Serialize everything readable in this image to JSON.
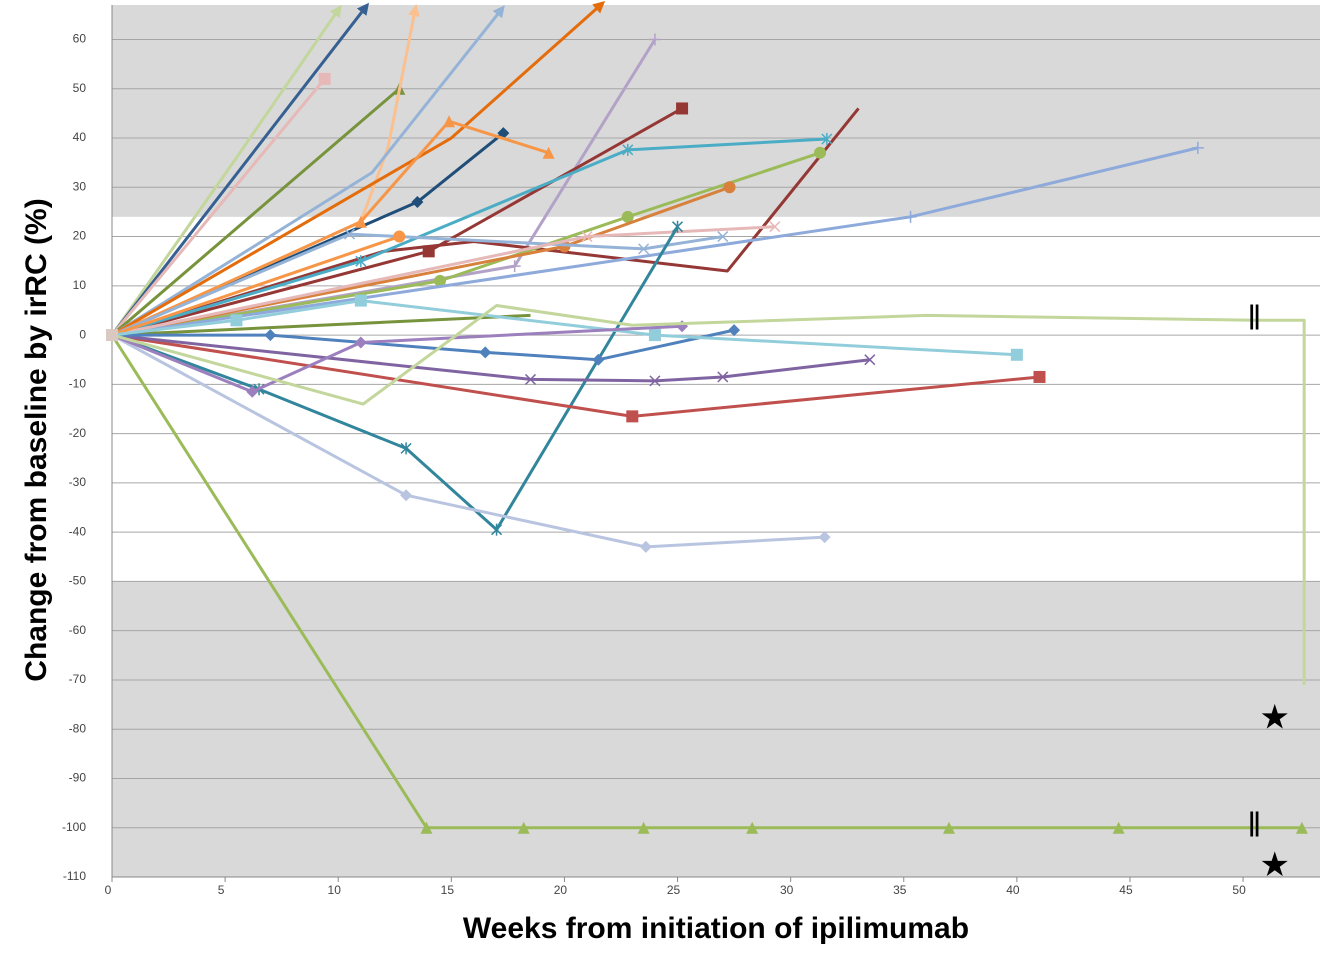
{
  "chart_data": {
    "type": "line",
    "x_label": "Weeks from initiation of ipilimumab",
    "y_label": "Change from baseline by irRC (%)",
    "xlim": [
      0,
      53.4
    ],
    "ylim": [
      -110,
      67
    ],
    "xticks": [
      0,
      5,
      10,
      15,
      20,
      25,
      30,
      35,
      40,
      45,
      50
    ],
    "yticks": [
      -110,
      -100,
      -90,
      -80,
      -70,
      -60,
      -50,
      -40,
      -30,
      -20,
      -10,
      0,
      10,
      20,
      30,
      40,
      50,
      60
    ],
    "grid": true,
    "shaded_regions": [
      {
        "from": 24,
        "to": 67,
        "color": "#d9d9d9"
      },
      {
        "from": -110,
        "to": -50,
        "color": "#d9d9d9"
      }
    ],
    "series": [
      {
        "color": "#c3d69b",
        "marker": "none",
        "arrow": true,
        "x": [
          0,
          5.5,
          10
        ],
        "values": [
          0,
          36,
          66
        ]
      },
      {
        "color": "#376092",
        "marker": "none",
        "arrow": true,
        "x": [
          0,
          11.2
        ],
        "values": [
          0,
          66.5
        ]
      },
      {
        "color": "#e6b9b8",
        "marker": "square",
        "x": [
          0,
          9.4
        ],
        "values": [
          0,
          52
        ]
      },
      {
        "color": "#77933c",
        "marker": "triangle",
        "x": [
          0,
          12.7
        ],
        "values": [
          0,
          50
        ]
      },
      {
        "color": "#fac090",
        "marker": "none",
        "arrow": true,
        "x": [
          0,
          11,
          12.2,
          13.4
        ],
        "values": [
          0,
          23,
          38,
          66
        ]
      },
      {
        "color": "#95b3d7",
        "marker": "none",
        "arrow": true,
        "x": [
          0,
          11.5,
          17.2
        ],
        "values": [
          0,
          33,
          66
        ]
      },
      {
        "color": "#e46c0a",
        "marker": "none",
        "arrow": true,
        "x": [
          0,
          15,
          21.6
        ],
        "values": [
          0,
          40,
          67
        ]
      },
      {
        "color": "#b3a2c7",
        "marker": "plus",
        "x": [
          0,
          17.8,
          24
        ],
        "values": [
          0,
          14,
          60
        ]
      },
      {
        "color": "#953735",
        "marker": "square",
        "x": [
          0,
          14,
          25.2
        ],
        "values": [
          0,
          17,
          46
        ]
      },
      {
        "color": "#953735",
        "marker": "none",
        "x": [
          0,
          12,
          16,
          27.2,
          33
        ],
        "values": [
          0,
          17,
          19,
          13,
          46
        ]
      },
      {
        "color": "#1f4e79",
        "marker": "diamond",
        "x": [
          0,
          13.5,
          17.3
        ],
        "values": [
          0,
          27,
          41
        ]
      },
      {
        "color": "#f79646",
        "marker": "triangle",
        "x": [
          0,
          11,
          14.9,
          19.3
        ],
        "values": [
          0,
          23,
          43.4,
          37
        ]
      },
      {
        "color": "#4bacc6",
        "marker": "star",
        "x": [
          0,
          11,
          22.8,
          31.6
        ],
        "values": [
          0,
          15,
          37.6,
          39.8
        ]
      },
      {
        "color": "#9bbb59",
        "marker": "circle",
        "x": [
          0,
          14.5,
          22.8,
          31.3
        ],
        "values": [
          0,
          11,
          24,
          37
        ]
      },
      {
        "color": "#d7813c",
        "marker": "circle",
        "x": [
          0,
          20,
          27.3
        ],
        "values": [
          0,
          18,
          30
        ]
      },
      {
        "color": "#8eaadb",
        "marker": "plus",
        "x": [
          0,
          35.3,
          48
        ],
        "values": [
          0,
          24,
          38
        ]
      },
      {
        "color": "#95b3d7",
        "marker": "x",
        "x": [
          0,
          10.5,
          23.5,
          27
        ],
        "values": [
          0,
          20.5,
          17.5,
          20
        ]
      },
      {
        "color": "#e6b9b8",
        "marker": "x",
        "x": [
          0,
          21,
          29.3
        ],
        "values": [
          0,
          20,
          22
        ]
      },
      {
        "color": "#f79646",
        "marker": "circle",
        "x": [
          0,
          12.7
        ],
        "values": [
          0,
          20
        ]
      },
      {
        "color": "#77933c",
        "marker": "none",
        "x": [
          0,
          18.5
        ],
        "values": [
          0,
          4
        ]
      },
      {
        "color": "#31859c",
        "marker": "star",
        "x": [
          0,
          6.5,
          13,
          17,
          25
        ],
        "values": [
          0,
          -11,
          -23,
          -39.5,
          22
        ]
      },
      {
        "color": "#b9c5e0",
        "marker": "diamond",
        "x": [
          0,
          13,
          23.6,
          31.5
        ],
        "values": [
          0,
          -32.5,
          -43,
          -41
        ]
      },
      {
        "color": "#c0504d",
        "marker": "square",
        "x": [
          0,
          23,
          41
        ],
        "values": [
          0,
          -16.5,
          -8.5
        ]
      },
      {
        "color": "#8064a2",
        "marker": "x",
        "x": [
          0,
          18.5,
          24,
          27,
          33.5
        ],
        "values": [
          0,
          -9,
          -9.3,
          -8.5,
          -5
        ]
      },
      {
        "color": "#4f81bd",
        "marker": "diamond",
        "x": [
          0,
          7,
          16.5,
          21.5,
          27.5
        ],
        "values": [
          0,
          0,
          -3.5,
          -5,
          1
        ]
      },
      {
        "color": "#92cddc",
        "marker": "square",
        "x": [
          0,
          5.5,
          11,
          24,
          40
        ],
        "values": [
          0,
          3,
          7,
          0,
          -4
        ]
      },
      {
        "color": "#9c7fbd",
        "marker": "diamond",
        "x": [
          0,
          6.2,
          11,
          25.2
        ],
        "values": [
          0,
          -11.5,
          -1.5,
          1.8
        ]
      },
      {
        "color": "#c3d69b",
        "marker": "none",
        "x": [
          0,
          11.1,
          17,
          23,
          36,
          50.5,
          52.7,
          52.7
        ],
        "values": [
          0,
          -14,
          6,
          2,
          4,
          3,
          3,
          -71
        ]
      },
      {
        "color": "#9bbb59",
        "marker": "triangle",
        "x": [
          0,
          13.9,
          18.2,
          23.5,
          28.3,
          37,
          44.5,
          52.6
        ],
        "values": [
          0,
          -100,
          -100,
          -100,
          -100,
          -100,
          -100,
          -100
        ]
      }
    ],
    "annotations": [
      {
        "text": "‖",
        "x": 50.5,
        "y": 3
      },
      {
        "text": "‖",
        "x": 50.5,
        "y": -100
      },
      {
        "text": "★",
        "x": 51.4,
        "y": -78
      },
      {
        "text": "★",
        "x": 51.4,
        "y": -108
      }
    ]
  }
}
